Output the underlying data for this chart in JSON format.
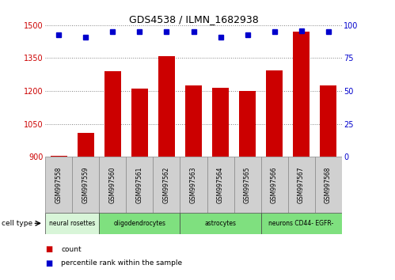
{
  "title": "GDS4538 / ILMN_1682938",
  "samples": [
    "GSM997558",
    "GSM997559",
    "GSM997560",
    "GSM997561",
    "GSM997562",
    "GSM997563",
    "GSM997564",
    "GSM997565",
    "GSM997566",
    "GSM997567",
    "GSM997568"
  ],
  "counts": [
    905,
    1010,
    1290,
    1210,
    1360,
    1225,
    1215,
    1200,
    1295,
    1470,
    1225
  ],
  "percentile_ranks": [
    93,
    91,
    95,
    95,
    95,
    95,
    91,
    93,
    95,
    96,
    95
  ],
  "cell_types": [
    {
      "label": "neural rosettes",
      "start": 0,
      "end": 2,
      "color": "#d8f5d8"
    },
    {
      "label": "oligodendrocytes",
      "start": 2,
      "end": 5,
      "color": "#7fe07f"
    },
    {
      "label": "astrocytes",
      "start": 5,
      "end": 8,
      "color": "#7fe07f"
    },
    {
      "label": "neurons CD44- EGFR-",
      "start": 8,
      "end": 11,
      "color": "#7fe07f"
    }
  ],
  "ylim_left": [
    900,
    1500
  ],
  "ylim_right": [
    0,
    100
  ],
  "yticks_left": [
    900,
    1050,
    1200,
    1350,
    1500
  ],
  "yticks_right": [
    0,
    25,
    50,
    75,
    100
  ],
  "bar_color": "#cc0000",
  "dot_color": "#0000cc",
  "bar_width": 0.6,
  "sample_box_color": "#d0d0d0",
  "sample_box_edge": "#888888"
}
